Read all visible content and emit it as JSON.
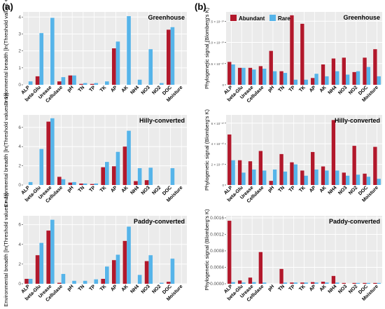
{
  "figure": {
    "panel_labels": [
      "(a)",
      "(b)"
    ]
  },
  "colors": {
    "abundant": "#B2182B",
    "rare": "#56B4E9",
    "panel_bg": "#EBEBEB",
    "grid": "#FFFFFF",
    "axis_text": "#4D4D4D"
  },
  "chart_data": [
    {
      "type": "bar",
      "title": "Greenhouse",
      "panel": "(a)",
      "categories": [
        "ALP",
        "beta-Glu",
        "Urease",
        "Cellulase",
        "pH",
        "TN",
        "TP",
        "TK",
        "AP",
        "AK",
        "NH4",
        "NO3",
        "NO2",
        "DOC",
        "Moisture"
      ],
      "series": [
        {
          "name": "Abundant",
          "values": [
            0,
            0.5,
            0,
            0.2,
            0.55,
            0.05,
            0.05,
            0,
            2.15,
            0,
            0,
            0,
            0,
            3.25,
            0
          ]
        },
        {
          "name": "Rare",
          "values": [
            0.2,
            3.05,
            3.95,
            0.45,
            0.55,
            0.1,
            0.1,
            0.2,
            2.55,
            4.05,
            0.3,
            2.1,
            0.1,
            3.4,
            0
          ]
        }
      ],
      "ylim": [
        0,
        4.3
      ],
      "yticks": [
        0,
        1,
        2,
        3,
        4
      ],
      "ylabel": "Environmental breadth [ln(Threshold values + 1)]"
    },
    {
      "type": "bar",
      "title": "Hilly-converted",
      "panel": "(a)",
      "categories": [
        "ALP",
        "beta-Glu",
        "Urease",
        "Cellulase",
        "pH",
        "TN",
        "TP",
        "TK",
        "AP",
        "AK",
        "NH4",
        "NO3",
        "NO2",
        "DOC",
        "Moisture"
      ],
      "series": [
        {
          "name": "Abundant",
          "values": [
            0,
            0,
            6.6,
            0.85,
            0.25,
            0.15,
            0.1,
            1.85,
            1.95,
            4.0,
            0.4,
            0.5,
            0,
            0,
            0
          ]
        },
        {
          "name": "Rare",
          "values": [
            0.3,
            3.75,
            6.95,
            0.6,
            0.3,
            0.15,
            0.15,
            2.4,
            3.45,
            5.65,
            1.75,
            1.8,
            0,
            1.75,
            0
          ]
        }
      ],
      "ylim": [
        0,
        7.3
      ],
      "yticks": [
        0,
        2,
        4,
        6
      ],
      "ylabel": "Environmental breadth [ln(Threshold values + 1)]"
    },
    {
      "type": "bar",
      "title": "Paddy-converted",
      "panel": "(a)",
      "categories": [
        "ALP",
        "beta-Glu",
        "Urease",
        "Cellulase",
        "pH",
        "TN",
        "TP",
        "TK",
        "AP",
        "AK",
        "NH4",
        "NO3",
        "NO2",
        "DOC",
        "Moisture"
      ],
      "series": [
        {
          "name": "Abundant",
          "values": [
            0.5,
            2.9,
            5.4,
            0.1,
            0,
            0,
            0,
            0.5,
            2.4,
            4.35,
            0,
            2.3,
            0,
            0.2,
            0
          ]
        },
        {
          "name": "Rare",
          "values": [
            0.5,
            4.15,
            6.5,
            1.0,
            0.3,
            0.3,
            0.45,
            1.75,
            2.95,
            5.8,
            0.9,
            2.9,
            0.1,
            2.55,
            0
          ]
        }
      ],
      "ylim": [
        0,
        6.9
      ],
      "yticks": [
        0,
        2,
        4,
        6
      ],
      "ylabel": "Environmental breadth [ln(Threshold values + 1)]"
    },
    {
      "type": "bar",
      "title": "Greenhouse",
      "panel": "(b)",
      "legend": [
        "Abundant",
        "Rare"
      ],
      "legend_position": "top-left",
      "categories": [
        "ALP",
        "beta-Glu",
        "Urease",
        "Cellulase",
        "pH",
        "TN",
        "TP",
        "TK",
        "AP",
        "AK",
        "NH4",
        "NO3",
        "NO2",
        "DOC",
        "Moisture"
      ],
      "series": [
        {
          "name": "Abundant",
          "values": [
            2.7e-10,
            2e-10,
            2e-10,
            2.2e-10,
            4e-10,
            1.6e-10,
            8.2e-10,
            7.2e-10,
            8e-11,
            2.4e-10,
            3.1e-10,
            3.2e-10,
            1.5e-10,
            3.2e-10,
            4.2e-10
          ]
        },
        {
          "name": "Rare",
          "values": [
            2.4e-10,
            2e-10,
            1.8e-10,
            1.9e-10,
            1.6e-10,
            1.4e-10,
            6e-11,
            6e-11,
            1.3e-10,
            1e-10,
            1.6e-10,
            1.2e-10,
            1.6e-10,
            2.1e-10,
            1e-10
          ]
        }
      ],
      "ylim": [
        0,
        8.6e-10
      ],
      "yticks": [
        0,
        2.5e-10,
        5e-10,
        7.5e-10
      ],
      "ytick_labels": [
        "0",
        "2.5 × 10⁻¹⁰",
        "5.0 × 10⁻¹⁰",
        "7.5 × 10⁻¹⁰"
      ],
      "ylabel": "Phylogenetic signal (Blomberg's K)"
    },
    {
      "type": "bar",
      "title": "Hilly-converted",
      "panel": "(b)",
      "categories": [
        "ALP",
        "beta-Glu",
        "Urease",
        "Cellulase",
        "pH",
        "TN",
        "TP",
        "TK",
        "AP",
        "AK",
        "NH4",
        "NO3",
        "NO2",
        "DOC",
        "Moisture"
      ],
      "series": [
        {
          "name": "Abundant",
          "values": [
            4.9e-10,
            2.4e-10,
            2.3e-10,
            3.3e-10,
            4e-11,
            3e-10,
            2.2e-10,
            1.4e-10,
            3.2e-10,
            1.8e-10,
            6.3e-10,
            1.2e-10,
            3.8e-10,
            1.1e-10,
            3.7e-10
          ]
        },
        {
          "name": "Rare",
          "values": [
            2.4e-10,
            1.2e-10,
            1.5e-10,
            1.4e-10,
            1.5e-10,
            1.3e-10,
            2e-10,
            9e-11,
            1.5e-10,
            1.4e-10,
            1.4e-10,
            9e-11,
            1e-10,
            8e-11,
            6e-11
          ]
        }
      ],
      "ylim": [
        0,
        6.8e-10
      ],
      "yticks": [
        0,
        2e-10,
        4e-10,
        6e-10
      ],
      "ytick_labels": [
        "0",
        "2 × 10⁻¹⁰",
        "4 × 10⁻¹⁰",
        "6 × 10⁻¹⁰"
      ],
      "ylabel": "Phylogenetic signal (Blomberg's K)"
    },
    {
      "type": "bar",
      "title": "Paddy-converted",
      "panel": "(b)",
      "categories": [
        "ALP",
        "beta-Glu",
        "Urease",
        "Cellulase",
        "pH",
        "TN",
        "TP",
        "TK",
        "AP",
        "AK",
        "NH4",
        "NO3",
        "NO2",
        "DOC",
        "Moisture"
      ],
      "series": [
        {
          "name": "Abundant",
          "values": [
            0.00153,
            8e-05,
            0.00015,
            0.00077,
            0,
            0.00036,
            3e-05,
            3e-05,
            4e-05,
            5e-05,
            0.00019,
            2e-05,
            2e-05,
            2e-05,
            2e-05
          ]
        },
        {
          "name": "Rare",
          "values": [
            4e-05,
            3e-05,
            4e-05,
            3e-05,
            0,
            3e-05,
            3e-05,
            3e-05,
            3e-05,
            3e-05,
            3e-05,
            0,
            2e-05,
            2e-05,
            2e-05
          ]
        }
      ],
      "ylim": [
        0,
        0.00165
      ],
      "yticks": [
        0,
        0.0004,
        0.0008,
        0.0012,
        0.0016
      ],
      "ytick_labels": [
        "0.0000",
        "0.0004",
        "0.0008",
        "0.0012",
        "0.0016"
      ],
      "ylabel": "Phylogenetic signal (Blomberg's K)"
    }
  ]
}
